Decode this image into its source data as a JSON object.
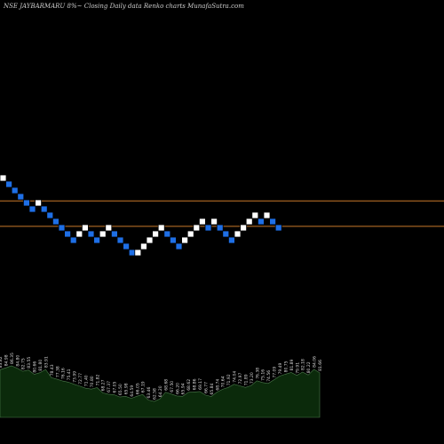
{
  "header_text": "NSE JAYBARMARU 8%~  Closing Daily data  Renko  charts MunafaSutra.com",
  "colors": {
    "background": "#000000",
    "up_brick": "#ffffff",
    "down_brick": "#1e6fe6",
    "brick_border": "#000000",
    "reference_line": "#c8782a",
    "volume_fill": "#0b2a0b",
    "volume_stroke": "#4b7a4b",
    "volume_label": "#dddddd"
  },
  "chart_data": {
    "type": "renko",
    "title": "NSE JAYBARMARU 8%~  Closing Daily data  Renko  charts MunafaSutra.com",
    "brick_levels_unit": "box index (relative, highest brick = 0)",
    "bricks": [
      {
        "level": 0,
        "dir": "up"
      },
      {
        "level": 1,
        "dir": "down"
      },
      {
        "level": 2,
        "dir": "down"
      },
      {
        "level": 3,
        "dir": "down"
      },
      {
        "level": 4,
        "dir": "down"
      },
      {
        "level": 5,
        "dir": "down"
      },
      {
        "level": 4,
        "dir": "up"
      },
      {
        "level": 5,
        "dir": "down"
      },
      {
        "level": 6,
        "dir": "down"
      },
      {
        "level": 7,
        "dir": "down"
      },
      {
        "level": 8,
        "dir": "down"
      },
      {
        "level": 9,
        "dir": "down"
      },
      {
        "level": 10,
        "dir": "down"
      },
      {
        "level": 9,
        "dir": "up"
      },
      {
        "level": 8,
        "dir": "up"
      },
      {
        "level": 9,
        "dir": "down"
      },
      {
        "level": 10,
        "dir": "down"
      },
      {
        "level": 9,
        "dir": "up"
      },
      {
        "level": 8,
        "dir": "up"
      },
      {
        "level": 9,
        "dir": "down"
      },
      {
        "level": 10,
        "dir": "down"
      },
      {
        "level": 11,
        "dir": "down"
      },
      {
        "level": 12,
        "dir": "down"
      },
      {
        "level": 12,
        "dir": "up"
      },
      {
        "level": 11,
        "dir": "up"
      },
      {
        "level": 10,
        "dir": "up"
      },
      {
        "level": 9,
        "dir": "up"
      },
      {
        "level": 8,
        "dir": "up"
      },
      {
        "level": 9,
        "dir": "down"
      },
      {
        "level": 10,
        "dir": "down"
      },
      {
        "level": 11,
        "dir": "down"
      },
      {
        "level": 10,
        "dir": "up"
      },
      {
        "level": 9,
        "dir": "up"
      },
      {
        "level": 8,
        "dir": "up"
      },
      {
        "level": 7,
        "dir": "up"
      },
      {
        "level": 8,
        "dir": "down"
      },
      {
        "level": 7,
        "dir": "up"
      },
      {
        "level": 8,
        "dir": "down"
      },
      {
        "level": 9,
        "dir": "down"
      },
      {
        "level": 10,
        "dir": "down"
      },
      {
        "level": 9,
        "dir": "up"
      },
      {
        "level": 8,
        "dir": "up"
      },
      {
        "level": 7,
        "dir": "up"
      },
      {
        "level": 6,
        "dir": "up"
      },
      {
        "level": 7,
        "dir": "down"
      },
      {
        "level": 6,
        "dir": "up"
      },
      {
        "level": 7,
        "dir": "down"
      },
      {
        "level": 8,
        "dir": "down"
      }
    ],
    "reference_lines_level": [
      3.6,
      7.7
    ],
    "volume_labels": [
      "83.82",
      "84.98",
      "86.35",
      "84.80",
      "82.75",
      "83.55",
      "80.66",
      "81.80",
      "83.91",
      "78.43",
      "77.38",
      "76.16",
      "75.41",
      "73.99",
      "72.77",
      "71.40",
      "70.80",
      "71.82",
      "68.27",
      "67.37",
      "67.05",
      "65.50",
      "65.98",
      "64.59",
      "66.05",
      "67.19",
      "63.46",
      "62.58",
      "64.20",
      "68.68",
      "67.50",
      "66.20",
      "65.94",
      "68.62",
      "68.86",
      "69.17",
      "66.77",
      "65.84",
      "68.74",
      "70.64",
      "71.92",
      "74.04",
      "72.97",
      "71.89",
      "73.20",
      "76.38",
      "75.16",
      "74.56",
      "77.09",
      "79.49",
      "80.75",
      "81.89",
      "79.91",
      "82.18",
      "80.22",
      "84.06",
      "81.66"
    ]
  }
}
